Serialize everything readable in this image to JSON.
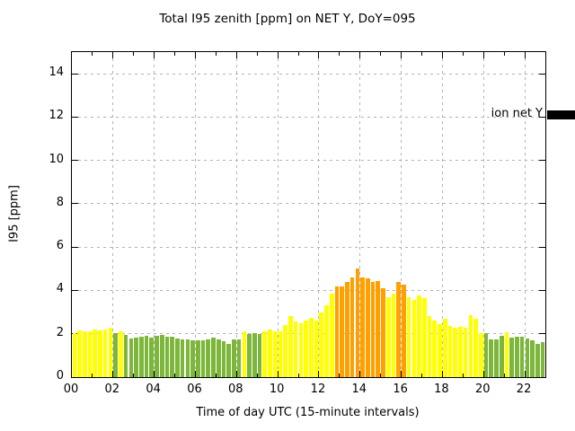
{
  "chart_data": {
    "type": "bar",
    "title": "Total I95 zenith [ppm] on NET Y, DoY=095",
    "xlabel": "Time of day UTC (15-minute intervals)",
    "ylabel": "I95 [ppm]",
    "legend_label": "ion net Y",
    "legend_position": "top-right-inside",
    "grid": true,
    "xlim_hours": [
      0,
      23
    ],
    "ylim": [
      0,
      15
    ],
    "x_tick_hours": [
      0,
      2,
      4,
      6,
      8,
      10,
      12,
      14,
      16,
      18,
      20,
      22
    ],
    "x_tick_labels": [
      "00",
      "02",
      "04",
      "06",
      "08",
      "10",
      "12",
      "14",
      "16",
      "18",
      "20",
      "22"
    ],
    "x_minor_tick_every_hours": 1,
    "y_ticks": [
      0,
      2,
      4,
      6,
      8,
      10,
      12,
      14
    ],
    "bar_interval_minutes": 15,
    "colors": {
      "green": "#7cb63a",
      "yellow": "#ffff00",
      "orange": "#ffa000",
      "grid": "#b3b3b3",
      "frame": "#000000",
      "legend_swatch": "#000000",
      "background": "#ffffff"
    },
    "bars": [
      {
        "t": "00:00",
        "v": 2.05,
        "c": "yellow"
      },
      {
        "t": "00:15",
        "v": 2.15,
        "c": "yellow"
      },
      {
        "t": "00:30",
        "v": 2.1,
        "c": "yellow"
      },
      {
        "t": "00:45",
        "v": 2.1,
        "c": "yellow"
      },
      {
        "t": "01:00",
        "v": 2.2,
        "c": "yellow"
      },
      {
        "t": "01:15",
        "v": 2.15,
        "c": "yellow"
      },
      {
        "t": "01:30",
        "v": 2.2,
        "c": "yellow"
      },
      {
        "t": "01:45",
        "v": 2.3,
        "c": "yellow"
      },
      {
        "t": "02:00",
        "v": 2.05,
        "c": "green"
      },
      {
        "t": "02:15",
        "v": 2.1,
        "c": "yellow"
      },
      {
        "t": "02:30",
        "v": 1.95,
        "c": "green"
      },
      {
        "t": "02:45",
        "v": 1.8,
        "c": "green"
      },
      {
        "t": "03:00",
        "v": 1.83,
        "c": "green"
      },
      {
        "t": "03:15",
        "v": 1.86,
        "c": "green"
      },
      {
        "t": "03:30",
        "v": 1.89,
        "c": "green"
      },
      {
        "t": "03:45",
        "v": 1.83,
        "c": "green"
      },
      {
        "t": "04:00",
        "v": 1.9,
        "c": "green"
      },
      {
        "t": "04:15",
        "v": 1.94,
        "c": "green"
      },
      {
        "t": "04:30",
        "v": 1.86,
        "c": "green"
      },
      {
        "t": "04:45",
        "v": 1.87,
        "c": "green"
      },
      {
        "t": "05:00",
        "v": 1.8,
        "c": "green"
      },
      {
        "t": "05:15",
        "v": 1.76,
        "c": "green"
      },
      {
        "t": "05:30",
        "v": 1.76,
        "c": "green"
      },
      {
        "t": "05:45",
        "v": 1.72,
        "c": "green"
      },
      {
        "t": "06:00",
        "v": 1.72,
        "c": "green"
      },
      {
        "t": "06:15",
        "v": 1.7,
        "c": "green"
      },
      {
        "t": "06:30",
        "v": 1.76,
        "c": "green"
      },
      {
        "t": "06:45",
        "v": 1.83,
        "c": "green"
      },
      {
        "t": "07:00",
        "v": 1.73,
        "c": "green"
      },
      {
        "t": "07:15",
        "v": 1.65,
        "c": "green"
      },
      {
        "t": "07:30",
        "v": 1.55,
        "c": "green"
      },
      {
        "t": "07:45",
        "v": 1.73,
        "c": "green"
      },
      {
        "t": "08:00",
        "v": 1.73,
        "c": "green"
      },
      {
        "t": "08:15",
        "v": 2.1,
        "c": "yellow"
      },
      {
        "t": "08:30",
        "v": 1.97,
        "c": "green"
      },
      {
        "t": "08:45",
        "v": 2.04,
        "c": "green"
      },
      {
        "t": "09:00",
        "v": 1.97,
        "c": "green"
      },
      {
        "t": "09:15",
        "v": 2.1,
        "c": "yellow"
      },
      {
        "t": "09:30",
        "v": 2.18,
        "c": "yellow"
      },
      {
        "t": "09:45",
        "v": 2.1,
        "c": "yellow"
      },
      {
        "t": "10:00",
        "v": 2.12,
        "c": "yellow"
      },
      {
        "t": "10:15",
        "v": 2.4,
        "c": "yellow"
      },
      {
        "t": "10:30",
        "v": 2.8,
        "c": "yellow"
      },
      {
        "t": "10:45",
        "v": 2.55,
        "c": "yellow"
      },
      {
        "t": "11:00",
        "v": 2.5,
        "c": "yellow"
      },
      {
        "t": "11:15",
        "v": 2.6,
        "c": "yellow"
      },
      {
        "t": "11:30",
        "v": 2.75,
        "c": "yellow"
      },
      {
        "t": "11:45",
        "v": 2.6,
        "c": "yellow"
      },
      {
        "t": "12:00",
        "v": 3.0,
        "c": "yellow"
      },
      {
        "t": "12:15",
        "v": 3.3,
        "c": "yellow"
      },
      {
        "t": "12:30",
        "v": 3.85,
        "c": "yellow"
      },
      {
        "t": "12:45",
        "v": 4.2,
        "c": "orange"
      },
      {
        "t": "13:00",
        "v": 4.2,
        "c": "orange"
      },
      {
        "t": "13:15",
        "v": 4.4,
        "c": "orange"
      },
      {
        "t": "13:30",
        "v": 4.6,
        "c": "orange"
      },
      {
        "t": "13:45",
        "v": 5.0,
        "c": "orange"
      },
      {
        "t": "14:00",
        "v": 4.6,
        "c": "orange"
      },
      {
        "t": "14:15",
        "v": 4.55,
        "c": "orange"
      },
      {
        "t": "14:30",
        "v": 4.4,
        "c": "orange"
      },
      {
        "t": "14:45",
        "v": 4.45,
        "c": "orange"
      },
      {
        "t": "15:00",
        "v": 4.1,
        "c": "orange"
      },
      {
        "t": "15:15",
        "v": 3.7,
        "c": "yellow"
      },
      {
        "t": "15:30",
        "v": 3.87,
        "c": "yellow"
      },
      {
        "t": "15:45",
        "v": 4.4,
        "c": "orange"
      },
      {
        "t": "16:00",
        "v": 4.25,
        "c": "orange"
      },
      {
        "t": "16:15",
        "v": 3.7,
        "c": "yellow"
      },
      {
        "t": "16:30",
        "v": 3.57,
        "c": "yellow"
      },
      {
        "t": "16:45",
        "v": 3.78,
        "c": "yellow"
      },
      {
        "t": "17:00",
        "v": 3.63,
        "c": "yellow"
      },
      {
        "t": "17:15",
        "v": 2.8,
        "c": "yellow"
      },
      {
        "t": "17:30",
        "v": 2.6,
        "c": "yellow"
      },
      {
        "t": "17:45",
        "v": 2.45,
        "c": "yellow"
      },
      {
        "t": "18:00",
        "v": 2.7,
        "c": "yellow"
      },
      {
        "t": "18:15",
        "v": 2.35,
        "c": "yellow"
      },
      {
        "t": "18:30",
        "v": 2.3,
        "c": "yellow"
      },
      {
        "t": "18:45",
        "v": 2.33,
        "c": "yellow"
      },
      {
        "t": "19:00",
        "v": 2.3,
        "c": "yellow"
      },
      {
        "t": "19:15",
        "v": 2.85,
        "c": "yellow"
      },
      {
        "t": "19:30",
        "v": 2.7,
        "c": "yellow"
      },
      {
        "t": "19:45",
        "v": 2.05,
        "c": "yellow"
      },
      {
        "t": "20:00",
        "v": 2.02,
        "c": "green"
      },
      {
        "t": "20:15",
        "v": 1.75,
        "c": "green"
      },
      {
        "t": "20:30",
        "v": 1.75,
        "c": "green"
      },
      {
        "t": "20:45",
        "v": 1.9,
        "c": "green"
      },
      {
        "t": "21:00",
        "v": 2.08,
        "c": "yellow"
      },
      {
        "t": "21:15",
        "v": 1.83,
        "c": "green"
      },
      {
        "t": "21:30",
        "v": 1.87,
        "c": "green"
      },
      {
        "t": "21:45",
        "v": 1.86,
        "c": "green"
      },
      {
        "t": "22:00",
        "v": 1.8,
        "c": "green"
      },
      {
        "t": "22:15",
        "v": 1.72,
        "c": "green"
      },
      {
        "t": "22:30",
        "v": 1.55,
        "c": "green"
      },
      {
        "t": "22:45",
        "v": 1.6,
        "c": "green"
      }
    ]
  }
}
